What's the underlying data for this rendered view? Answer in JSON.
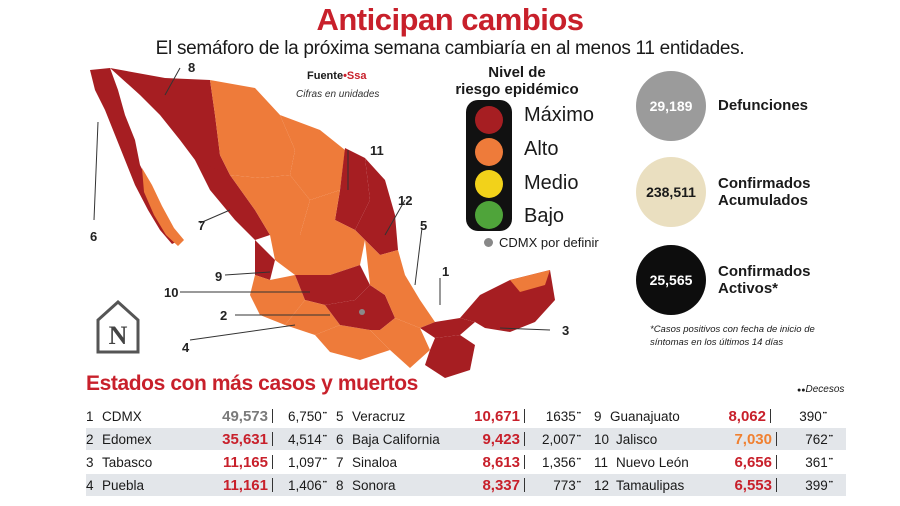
{
  "header": {
    "title": "Anticipan cambios",
    "subtitle": "El semáforo de la próxima semana cambiaría en al menos 11 entidades."
  },
  "source": {
    "prefix": "Fuente",
    "brand": "Ssa",
    "units_note": "Cifras en unidades"
  },
  "legend": {
    "title_line1": "Nivel de",
    "title_line2": "riesgo epidémico",
    "levels": [
      {
        "label": "Máximo",
        "color": "#a61e22"
      },
      {
        "label": "Alto",
        "color": "#ee7b3a"
      },
      {
        "label": "Medio",
        "color": "#f2d21a"
      },
      {
        "label": "Bajo",
        "color": "#4fa43a"
      }
    ],
    "cdmx_note": "CDMX por definir"
  },
  "colors": {
    "max": "#a61e22",
    "alto": "#ee7b3a",
    "brand_red": "#c8202b",
    "gray_circle": "#9b9b9b",
    "beige_circle": "#eadfc0",
    "black_circle": "#0d0d0d"
  },
  "map_labels": [
    "8",
    "6",
    "7",
    "11",
    "12",
    "5",
    "9",
    "10",
    "1",
    "2",
    "4",
    "3"
  ],
  "stats": [
    {
      "value": "29,189",
      "label_line1": "Defunciones",
      "label_line2": ""
    },
    {
      "value": "238,511",
      "label_line1": "Confirmados",
      "label_line2": "Acumulados"
    },
    {
      "value": "25,565",
      "label_line1": "Confirmados",
      "label_line2": "Activos*"
    }
  ],
  "footnote": "*Casos positivos con fecha de inicio de síntomas en los últimos 14 días",
  "logo_letter": "N",
  "table": {
    "title": "Estados con más casos y muertos",
    "decesos_label": "Decesos",
    "rows": [
      {
        "rank": "1",
        "state": "CDMX",
        "cases": "49,573",
        "deaths": "6,750"
      },
      {
        "rank": "2",
        "state": "Edomex",
        "cases": "35,631",
        "deaths": "4,514"
      },
      {
        "rank": "3",
        "state": "Tabasco",
        "cases": "11,165",
        "deaths": "1,097"
      },
      {
        "rank": "4",
        "state": "Puebla",
        "cases": "11,161",
        "deaths": "1,406"
      },
      {
        "rank": "5",
        "state": "Veracruz",
        "cases": "10,671",
        "deaths": "1635"
      },
      {
        "rank": "6",
        "state": "Baja California",
        "cases": "9,423",
        "deaths": "2,007"
      },
      {
        "rank": "7",
        "state": "Sinaloa",
        "cases": "8,613",
        "deaths": "1,356"
      },
      {
        "rank": "8",
        "state": "Sonora",
        "cases": "8,337",
        "deaths": "773"
      },
      {
        "rank": "9",
        "state": "Guanajuato",
        "cases": "8,062",
        "deaths": "390"
      },
      {
        "rank": "10",
        "state": "Jalisco",
        "cases": "7,030",
        "deaths": "762"
      },
      {
        "rank": "11",
        "state": "Nuevo León",
        "cases": "6,656",
        "deaths": "361"
      },
      {
        "rank": "12",
        "state": "Tamaulipas",
        "cases": "6,553",
        "deaths": "399"
      }
    ]
  }
}
